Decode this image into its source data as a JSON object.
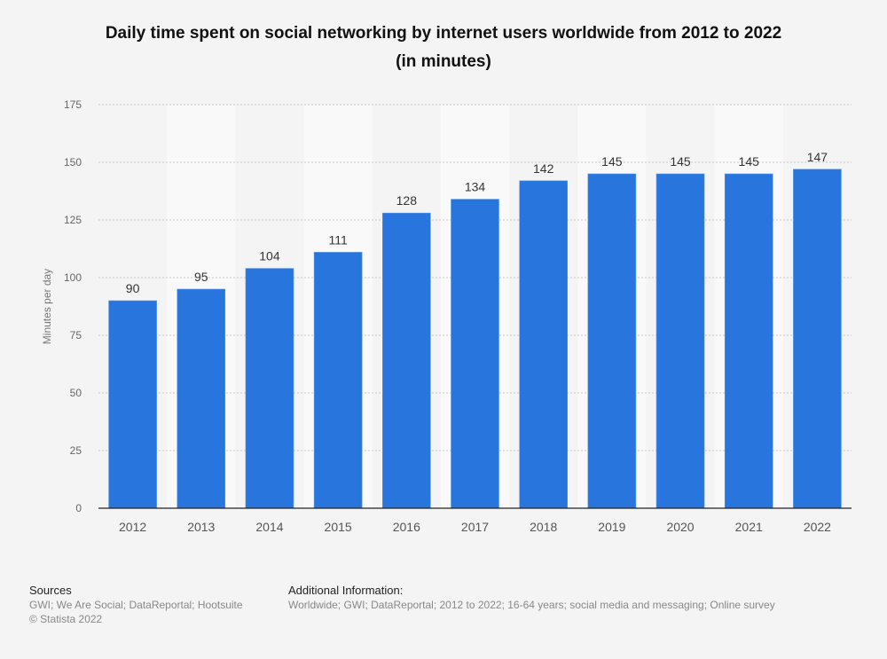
{
  "chart_data": {
    "type": "bar",
    "title_line1": "Daily time spent on social networking by internet users worldwide from 2012 to 2022",
    "title_line2": "(in minutes)",
    "xlabel": "",
    "ylabel": "Minutes per day",
    "categories": [
      "2012",
      "2013",
      "2014",
      "2015",
      "2016",
      "2017",
      "2018",
      "2019",
      "2020",
      "2021",
      "2022"
    ],
    "values": [
      90,
      95,
      104,
      111,
      128,
      134,
      142,
      145,
      145,
      145,
      147
    ],
    "value_labels": [
      "90",
      "95",
      "104",
      "111",
      "128",
      "134",
      "142",
      "145",
      "145",
      "145",
      "147"
    ],
    "ylim": [
      0,
      175
    ],
    "yticks": [
      0,
      25,
      50,
      75,
      100,
      125,
      150,
      175
    ],
    "ytick_labels": [
      "0",
      "25",
      "50",
      "75",
      "100",
      "125",
      "150",
      "175"
    ],
    "grid": true,
    "legend": "none",
    "bar_color": "#2876dd"
  },
  "footer": {
    "sources_heading": "Sources",
    "sources_text": "GWI; We Are Social; DataReportal; Hootsuite",
    "copyright": "© Statista 2022",
    "additional_heading": "Additional Information:",
    "additional_text": "Worldwide; GWI; DataReportal; 2012 to 2022; 16-64 years; social media and messaging; Online survey"
  }
}
